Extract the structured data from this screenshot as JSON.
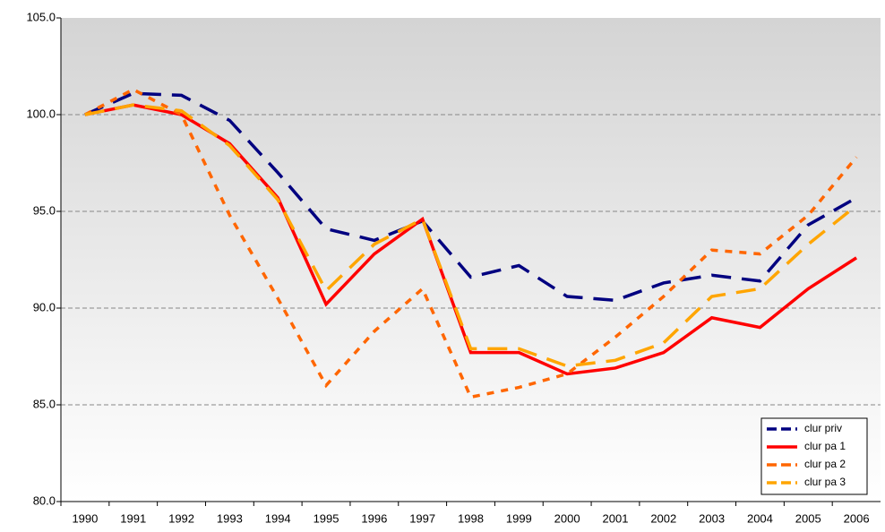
{
  "chart_data": {
    "type": "line",
    "categories": [
      "1990",
      "1991",
      "1992",
      "1993",
      "1994",
      "1995",
      "1996",
      "1997",
      "1998",
      "1999",
      "2000",
      "2001",
      "2002",
      "2003",
      "2004",
      "2005",
      "2006"
    ],
    "series": [
      {
        "name": "clur priv",
        "color": "#000080",
        "values": [
          100,
          101.1,
          101.0,
          99.7,
          97.0,
          94.1,
          93.5,
          94.5,
          91.6,
          92.2,
          90.6,
          90.4,
          91.3,
          91.7,
          91.4,
          94.3,
          95.7
        ]
      },
      {
        "name": "clur pa 1",
        "color": "#ff0000",
        "values": [
          100,
          100.5,
          100.0,
          98.5,
          95.7,
          90.2,
          92.8,
          94.6,
          87.7,
          87.7,
          86.6,
          86.9,
          87.7,
          89.5,
          89.0,
          91.0,
          92.6
        ]
      },
      {
        "name": "clur pa 2",
        "color": "#ff6600",
        "values": [
          100,
          101.3,
          100.0,
          94.8,
          90.5,
          86.0,
          88.8,
          91.0,
          85.4,
          85.9,
          86.6,
          88.5,
          90.6,
          93.0,
          92.8,
          94.8,
          97.8
        ]
      },
      {
        "name": "clur pa 3",
        "color": "#ffa500",
        "values": [
          100,
          100.5,
          100.2,
          98.4,
          95.6,
          90.9,
          93.3,
          94.6,
          87.9,
          87.9,
          87.0,
          87.3,
          88.2,
          90.6,
          91.0,
          93.3,
          95.3
        ]
      }
    ],
    "ylim": [
      80,
      105
    ],
    "yticks": [
      {
        "value": 80,
        "label": "80.0"
      },
      {
        "value": 85,
        "label": "85.0"
      },
      {
        "value": 90,
        "label": "90.0"
      },
      {
        "value": 95,
        "label": "95.0"
      },
      {
        "value": 100,
        "label": "100.0"
      },
      {
        "value": 105,
        "label": "105.0"
      }
    ],
    "grid": true,
    "legend": "lower right"
  }
}
